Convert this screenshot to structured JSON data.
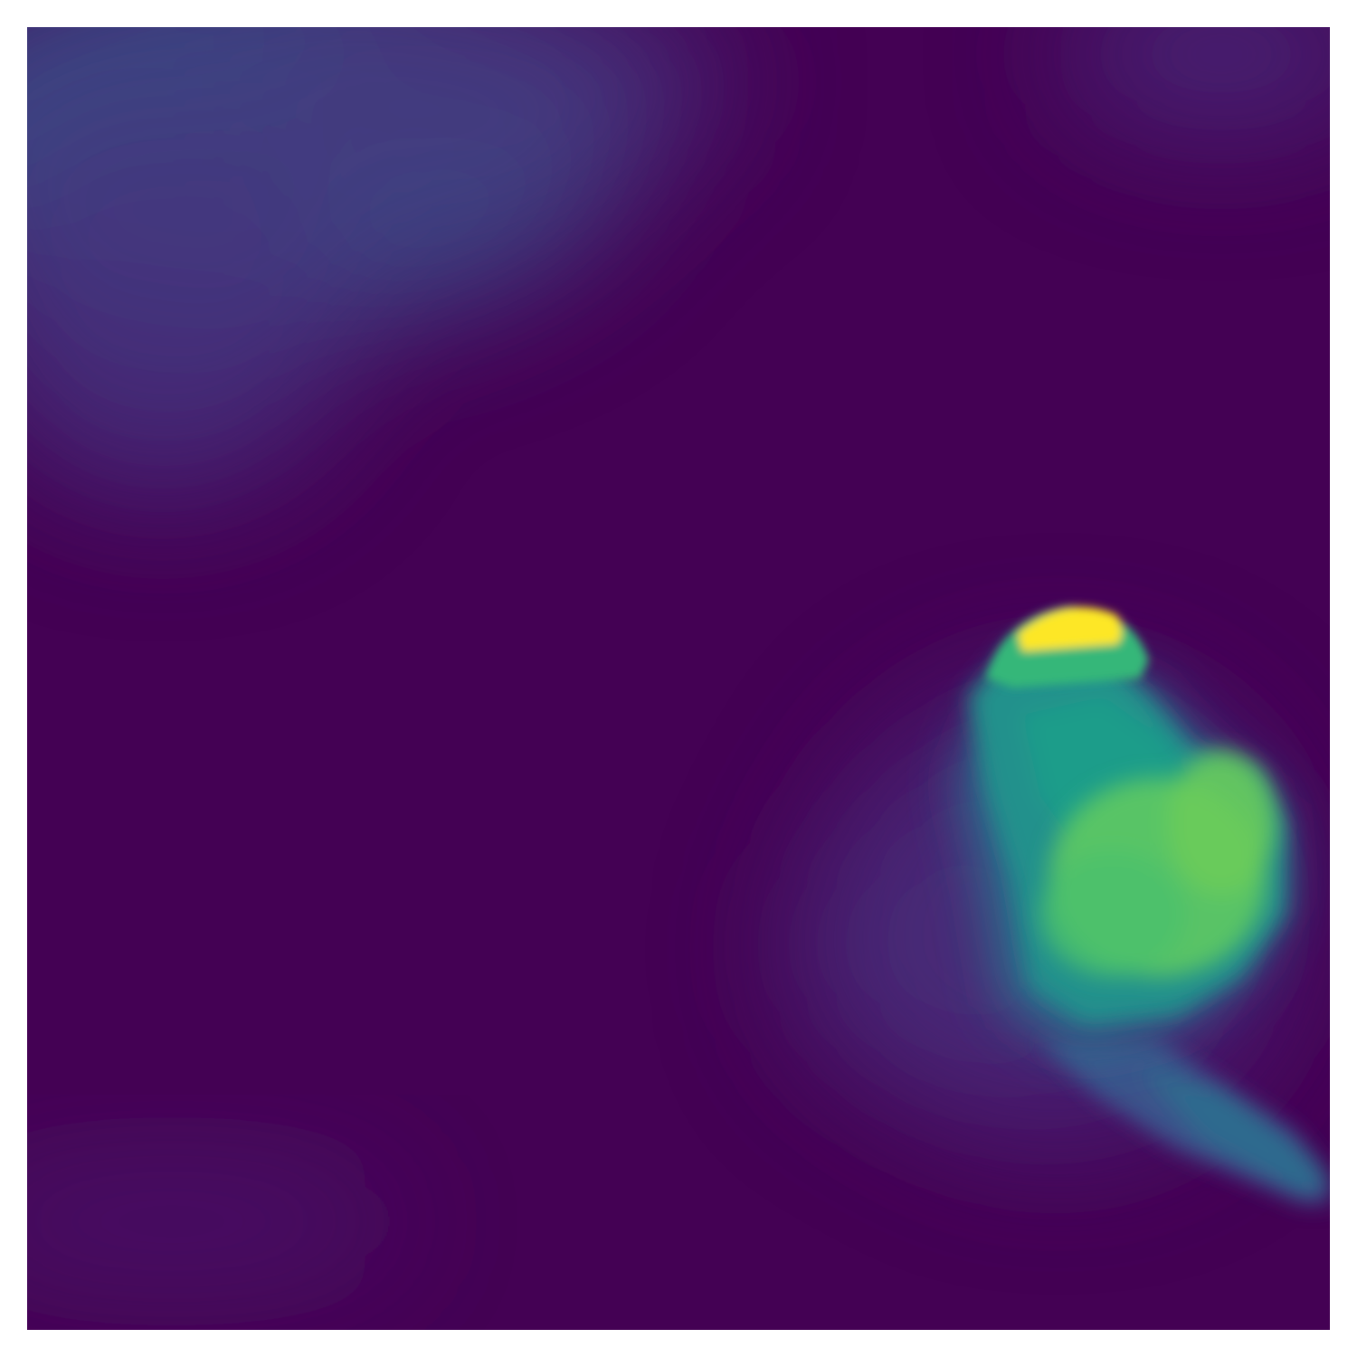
{
  "image": {
    "kind": "depth-map heatmap",
    "colormap": "viridis",
    "colors": {
      "background": "#ffffff",
      "low": "#440154",
      "low_mid": "#3b528b",
      "mid": "#21918c",
      "high": "#5ec962",
      "peak": "#fde725"
    }
  }
}
